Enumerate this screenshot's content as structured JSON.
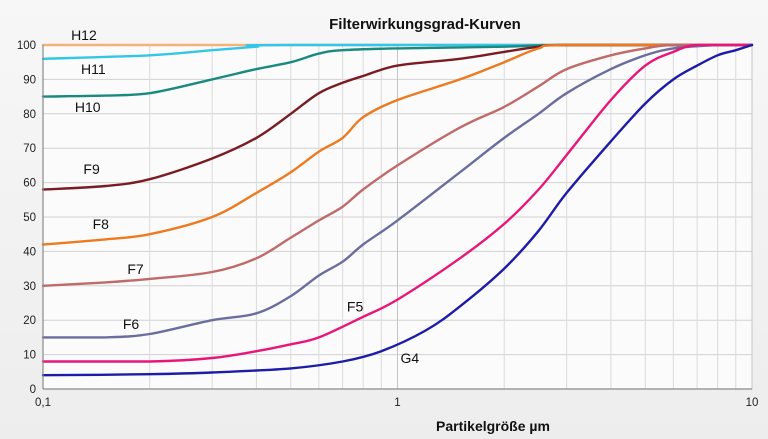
{
  "chart_data": {
    "type": "line",
    "title": "Filterwirkungsgrad-Kurven",
    "xlabel": "Partikelgröße µm",
    "ylabel": "",
    "x_scale": "log",
    "xlim": [
      0.1,
      10
    ],
    "ylim": [
      0,
      100
    ],
    "xticks": [
      "0,1",
      "1",
      "10"
    ],
    "yticks": [
      "0",
      "10",
      "20",
      "30",
      "40",
      "50",
      "60",
      "70",
      "80",
      "90",
      "100"
    ],
    "grid": true,
    "legend": "none",
    "series": [
      {
        "name": "H12",
        "color": "#f2b37a",
        "label_xy": [
          0.12,
          101.5
        ],
        "points": [
          [
            0.1,
            100
          ],
          [
            10,
            100
          ]
        ]
      },
      {
        "name": "H11",
        "color": "#33c6e8",
        "label_xy": [
          0.128,
          91.5
        ],
        "points": [
          [
            0.1,
            96
          ],
          [
            0.2,
            97
          ],
          [
            0.3,
            98.5
          ],
          [
            0.4,
            99.5
          ],
          [
            0.5,
            100
          ],
          [
            10,
            100
          ]
        ]
      },
      {
        "name": "H10",
        "color": "#1a8a80",
        "label_xy": [
          0.123,
          80.5
        ],
        "points": [
          [
            0.1,
            85
          ],
          [
            0.15,
            85.3
          ],
          [
            0.2,
            86
          ],
          [
            0.3,
            90
          ],
          [
            0.4,
            93
          ],
          [
            0.5,
            95
          ],
          [
            0.6,
            97.5
          ],
          [
            0.7,
            98.5
          ],
          [
            1,
            99
          ],
          [
            2,
            99.5
          ],
          [
            3,
            100
          ],
          [
            10,
            100
          ]
        ]
      },
      {
        "name": "F9",
        "color": "#7a1c24",
        "label_xy": [
          0.13,
          62.5
        ],
        "points": [
          [
            0.1,
            58
          ],
          [
            0.15,
            59
          ],
          [
            0.2,
            61
          ],
          [
            0.3,
            67
          ],
          [
            0.4,
            73
          ],
          [
            0.5,
            80
          ],
          [
            0.6,
            86
          ],
          [
            0.7,
            89
          ],
          [
            0.8,
            91
          ],
          [
            1,
            94
          ],
          [
            1.5,
            96
          ],
          [
            2,
            98
          ],
          [
            2.5,
            99.5
          ],
          [
            3,
            100
          ],
          [
            10,
            100
          ]
        ]
      },
      {
        "name": "F8",
        "color": "#ee7a20",
        "label_xy": [
          0.138,
          46.5
        ],
        "points": [
          [
            0.1,
            42
          ],
          [
            0.15,
            43.5
          ],
          [
            0.2,
            45
          ],
          [
            0.3,
            50
          ],
          [
            0.4,
            57
          ],
          [
            0.5,
            63
          ],
          [
            0.6,
            69
          ],
          [
            0.7,
            73
          ],
          [
            0.8,
            79
          ],
          [
            1,
            84
          ],
          [
            1.5,
            90
          ],
          [
            2,
            95
          ],
          [
            2.5,
            99
          ],
          [
            3,
            100
          ],
          [
            10,
            100
          ]
        ]
      },
      {
        "name": "F7",
        "color": "#c06a6a",
        "label_xy": [
          0.173,
          33.5
        ],
        "points": [
          [
            0.1,
            30
          ],
          [
            0.15,
            31
          ],
          [
            0.2,
            32
          ],
          [
            0.3,
            34
          ],
          [
            0.4,
            38
          ],
          [
            0.5,
            44
          ],
          [
            0.6,
            49
          ],
          [
            0.7,
            53
          ],
          [
            0.8,
            58
          ],
          [
            1,
            65
          ],
          [
            1.5,
            76
          ],
          [
            2,
            82
          ],
          [
            2.5,
            88
          ],
          [
            3,
            93
          ],
          [
            4,
            97
          ],
          [
            5,
            99
          ],
          [
            6,
            100
          ],
          [
            10,
            100
          ]
        ]
      },
      {
        "name": "F6",
        "color": "#6a6e9e",
        "label_xy": [
          0.168,
          17.5
        ],
        "points": [
          [
            0.1,
            15
          ],
          [
            0.15,
            15
          ],
          [
            0.2,
            16
          ],
          [
            0.3,
            20
          ],
          [
            0.4,
            22
          ],
          [
            0.5,
            27
          ],
          [
            0.6,
            33
          ],
          [
            0.7,
            37
          ],
          [
            0.8,
            42
          ],
          [
            1,
            49
          ],
          [
            1.5,
            63
          ],
          [
            2,
            73
          ],
          [
            2.5,
            80
          ],
          [
            3,
            86
          ],
          [
            4,
            93
          ],
          [
            5,
            97
          ],
          [
            6,
            99
          ],
          [
            8,
            100
          ],
          [
            10,
            100
          ]
        ]
      },
      {
        "name": "F5",
        "color": "#e8157a",
        "label_xy": [
          0.72,
          22.5
        ],
        "points": [
          [
            0.1,
            8
          ],
          [
            0.2,
            8
          ],
          [
            0.3,
            9
          ],
          [
            0.4,
            11
          ],
          [
            0.5,
            13
          ],
          [
            0.6,
            15
          ],
          [
            0.8,
            21
          ],
          [
            1,
            26
          ],
          [
            1.5,
            38
          ],
          [
            2,
            48
          ],
          [
            2.5,
            58
          ],
          [
            3,
            68
          ],
          [
            4,
            84
          ],
          [
            5,
            94
          ],
          [
            6,
            98
          ],
          [
            7,
            100
          ],
          [
            10,
            100
          ]
        ]
      },
      {
        "name": "G4",
        "color": "#1c1ca8",
        "label_xy": [
          1.02,
          7.5
        ],
        "points": [
          [
            0.1,
            4
          ],
          [
            0.2,
            4.3
          ],
          [
            0.3,
            4.8
          ],
          [
            0.5,
            6
          ],
          [
            0.7,
            8
          ],
          [
            0.9,
            11
          ],
          [
            1.2,
            17
          ],
          [
            1.5,
            24
          ],
          [
            2,
            35
          ],
          [
            2.5,
            46
          ],
          [
            3,
            57
          ],
          [
            4,
            72
          ],
          [
            5,
            83
          ],
          [
            6,
            90
          ],
          [
            7,
            94
          ],
          [
            8,
            97
          ],
          [
            9,
            98.5
          ],
          [
            10,
            100
          ]
        ]
      }
    ]
  }
}
